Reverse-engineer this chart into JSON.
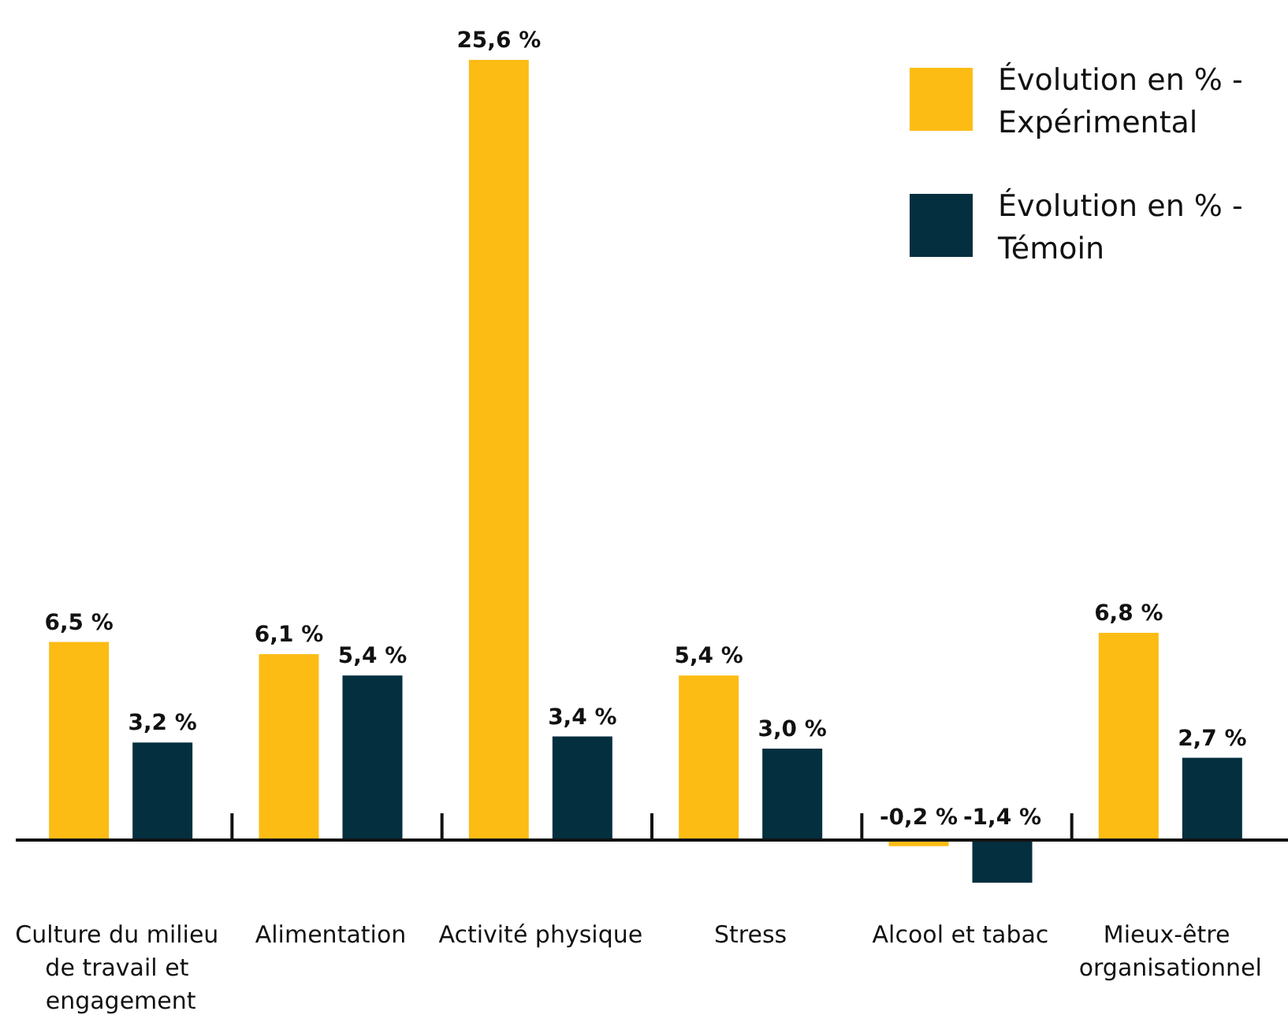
{
  "chart_data": {
    "type": "bar",
    "categories": [
      "Culture du milieu de travail et engagement",
      "Alimentation",
      "Activité physique",
      "Stress",
      "Alcool et tabac",
      "Mieux-être organisationnel"
    ],
    "series": [
      {
        "name": "Évolution en % - Expérimental",
        "color": "#fcbc14",
        "values": [
          6.5,
          6.1,
          25.6,
          5.4,
          -0.2,
          6.8
        ],
        "value_labels": [
          "6,5 %",
          "6,1 %",
          "25,6 %",
          "5,4 %",
          "-0,2 %",
          "6,8 %"
        ]
      },
      {
        "name": "Évolution en % - Témoin",
        "color": "#032f3f",
        "values": [
          3.2,
          5.4,
          3.4,
          3.0,
          -1.4,
          2.7
        ],
        "value_labels": [
          "3,2 %",
          "5,4 %",
          "3,4 %",
          "3,0 %",
          "-1,4 %",
          "2,7 %"
        ]
      }
    ],
    "legend": "top right"
  }
}
